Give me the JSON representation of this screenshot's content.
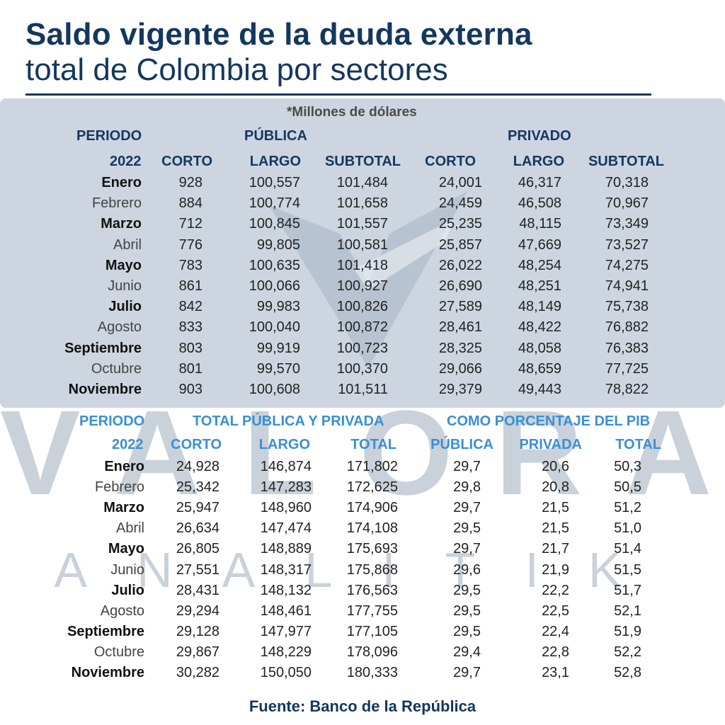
{
  "title": {
    "line1": "Saldo vigente de la deuda externa",
    "line2": "total de Colombia por sectores"
  },
  "unit_note": "*Millones de dólares",
  "watermark": {
    "main": "VALORA",
    "sub": "ANALITIK"
  },
  "source": "Fuente: Banco de la República",
  "colors": {
    "title": "#14375e",
    "header_top": "#14375e",
    "header_bottom": "#3a8fd4",
    "panel": "#cdd6e0",
    "watermark": "#c9d1db"
  },
  "chart_data": [
    {
      "type": "table",
      "title": "Saldo deuda externa por sector",
      "period_label": "PERIODO",
      "year_label": "2022",
      "groups": [
        "PÚBLICA",
        "PRIVADO"
      ],
      "columns": [
        "CORTO",
        "LARGO",
        "SUBTOTAL",
        "CORTO",
        "LARGO",
        "SUBTOTAL"
      ],
      "rows": [
        {
          "month": "Enero",
          "values": [
            "928",
            "100,557",
            "101,484",
            "24,001",
            "46,317",
            "70,318"
          ]
        },
        {
          "month": "Febrero",
          "values": [
            "884",
            "100,774",
            "101,658",
            "24,459",
            "46,508",
            "70,967"
          ]
        },
        {
          "month": "Marzo",
          "values": [
            "712",
            "100,845",
            "101,557",
            "25,235",
            "48,115",
            "73,349"
          ]
        },
        {
          "month": "Abril",
          "values": [
            "776",
            "99,805",
            "100,581",
            "25,857",
            "47,669",
            "73,527"
          ]
        },
        {
          "month": "Mayo",
          "values": [
            "783",
            "100,635",
            "101,418",
            "26,022",
            "48,254",
            "74,275"
          ]
        },
        {
          "month": "Junio",
          "values": [
            "861",
            "100,066",
            "100,927",
            "26,690",
            "48,251",
            "74,941"
          ]
        },
        {
          "month": "Julio",
          "values": [
            "842",
            "99,983",
            "100,826",
            "27,589",
            "48,149",
            "75,738"
          ]
        },
        {
          "month": "Agosto",
          "values": [
            "833",
            "100,040",
            "100,872",
            "28,461",
            "48,422",
            "76,882"
          ]
        },
        {
          "month": "Septiembre",
          "values": [
            "803",
            "99,919",
            "100,723",
            "28,325",
            "48,058",
            "76,383"
          ]
        },
        {
          "month": "Octubre",
          "values": [
            "801",
            "99,570",
            "100,370",
            "29,066",
            "48,659",
            "77,725"
          ]
        },
        {
          "month": "Noviembre",
          "values": [
            "903",
            "100,608",
            "101,511",
            "29,379",
            "49,443",
            "78,822"
          ]
        }
      ]
    },
    {
      "type": "table",
      "title": "Total pública y privada y como porcentaje del PIB",
      "period_label": "PERIODO",
      "year_label": "2022",
      "groups": [
        "TOTAL PÚBLICA Y PRIVADA",
        "COMO PORCENTAJE DEL PIB"
      ],
      "columns": [
        "CORTO",
        "LARGO",
        "TOTAL",
        "PÚBLICA",
        "PRIVADA",
        "TOTAL"
      ],
      "rows": [
        {
          "month": "Enero",
          "values": [
            "24,928",
            "146,874",
            "171,802",
            "29,7",
            "20,6",
            "50,3"
          ]
        },
        {
          "month": "Febrero",
          "values": [
            "25,342",
            "147,283",
            "172,625",
            "29,8",
            "20,8",
            "50,5"
          ]
        },
        {
          "month": "Marzo",
          "values": [
            "25,947",
            "148,960",
            "174,906",
            "29,7",
            "21,5",
            "51,2"
          ]
        },
        {
          "month": "Abril",
          "values": [
            "26,634",
            "147,474",
            "174,108",
            "29,5",
            "21,5",
            "51,0"
          ]
        },
        {
          "month": "Mayo",
          "values": [
            "26,805",
            "148,889",
            "175,693",
            "29,7",
            "21,7",
            "51,4"
          ]
        },
        {
          "month": "Junio",
          "values": [
            "27,551",
            "148,317",
            "175,868",
            "29,6",
            "21,9",
            "51,5"
          ]
        },
        {
          "month": "Julio",
          "values": [
            "28,431",
            "148,132",
            "176,563",
            "29,5",
            "22,2",
            "51,7"
          ]
        },
        {
          "month": "Agosto",
          "values": [
            "29,294",
            "148,461",
            "177,755",
            "29,5",
            "22,5",
            "52,1"
          ]
        },
        {
          "month": "Septiembre",
          "values": [
            "29,128",
            "147,977",
            "177,105",
            "29,5",
            "22,4",
            "51,9"
          ]
        },
        {
          "month": "Octubre",
          "values": [
            "29,867",
            "148,229",
            "178,096",
            "29,4",
            "22,8",
            "52,2"
          ]
        },
        {
          "month": "Noviembre",
          "values": [
            "30,282",
            "150,050",
            "180,333",
            "29,7",
            "23,1",
            "52,8"
          ]
        }
      ]
    }
  ]
}
